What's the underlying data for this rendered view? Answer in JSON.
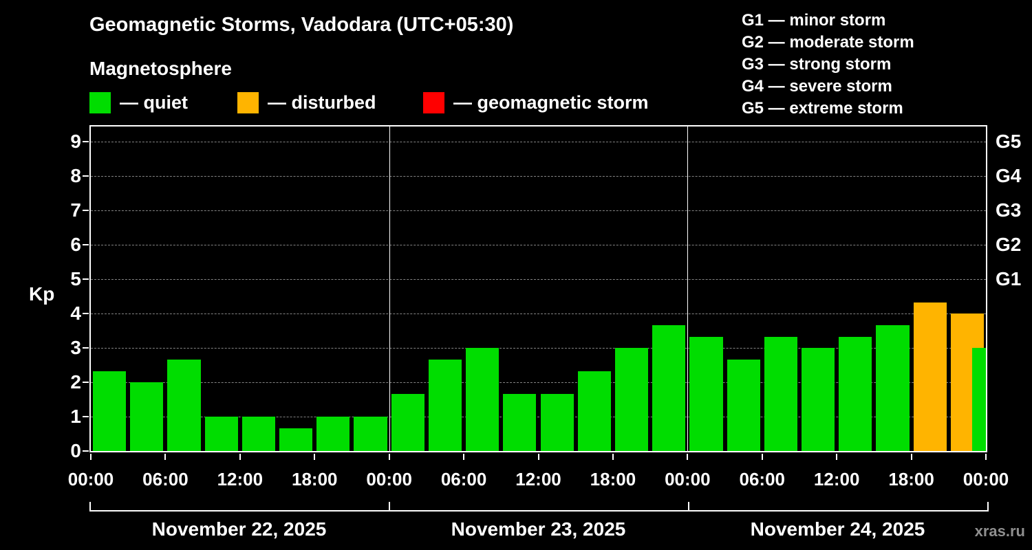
{
  "title": "Geomagnetic Storms, Vadodara (UTC+05:30)",
  "subtitle": "Magnetosphere",
  "watermark": "xras.ru",
  "colors": {
    "quiet": "#00dd00",
    "disturbed": "#ffb400",
    "storm": "#ff0000",
    "axis": "#ffffff",
    "grid": "#858585",
    "background": "#000000"
  },
  "legend": [
    {
      "key": "quiet",
      "label": "— quiet",
      "color": "#00dd00"
    },
    {
      "key": "disturbed",
      "label": "— disturbed",
      "color": "#ffb400"
    },
    {
      "key": "storm",
      "label": "— geomagnetic storm",
      "color": "#ff0000"
    }
  ],
  "storm_scale": [
    "G1 — minor storm",
    "G2 — moderate storm",
    "G3 — strong storm",
    "G4 — severe storm",
    "G5 — extreme storm"
  ],
  "chart_data": {
    "type": "bar",
    "title": "Geomagnetic Storms, Vadodara (UTC+05:30)",
    "ylabel": "Kp",
    "ylim": [
      0,
      9.45
    ],
    "yticks": [
      0,
      1,
      2,
      3,
      4,
      5,
      6,
      7,
      8,
      9
    ],
    "grid": "dashed horizontal line at each integer Kp value",
    "legend_position": "top",
    "interval_hours": 3,
    "right_axis_labels": [
      {
        "kp": 5,
        "label": "G1"
      },
      {
        "kp": 6,
        "label": "G2"
      },
      {
        "kp": 7,
        "label": "G3"
      },
      {
        "kp": 8,
        "label": "G4"
      },
      {
        "kp": 9,
        "label": "G5"
      }
    ],
    "x_tick_labels": [
      "00:00",
      "06:00",
      "12:00",
      "18:00",
      "00:00",
      "06:00",
      "12:00",
      "18:00",
      "00:00",
      "06:00",
      "12:00",
      "18:00",
      "00:00"
    ],
    "days": [
      {
        "date": "November 22, 2025",
        "values": [
          2.33,
          2.0,
          2.67,
          1.0,
          1.0,
          0.67,
          1.0,
          1.0
        ]
      },
      {
        "date": "November 23, 2025",
        "values": [
          1.67,
          2.67,
          3.0,
          1.67,
          1.67,
          2.33,
          3.0,
          3.67
        ]
      },
      {
        "date": "November 24, 2025",
        "values": [
          3.33,
          2.67,
          3.33,
          3.0,
          3.33,
          3.67,
          4.33,
          4.0
        ]
      }
    ],
    "partial_next_bar": {
      "value": 3.0
    },
    "color_rule": {
      "quiet_max": 3.99,
      "disturbed_max": 4.99
    }
  }
}
